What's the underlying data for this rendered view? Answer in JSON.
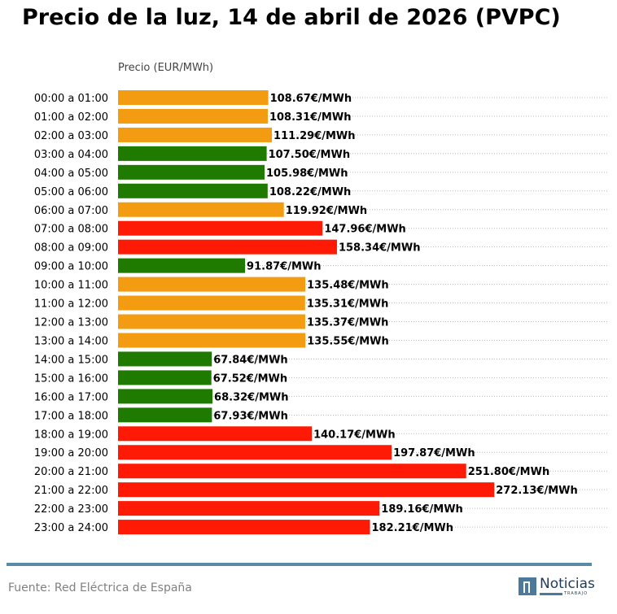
{
  "colors": {
    "low": "#1f7a00",
    "mid": "#f39c12",
    "high": "#ff1a05",
    "accent": "#5a8aa6"
  },
  "chart_data": {
    "type": "bar",
    "orientation": "horizontal",
    "title": "Precio de la luz, 14 de abril de 2026 (PVPC)",
    "ylabel": "Precio (EUR/MWh)",
    "xlim": [
      0,
      355
    ],
    "grid": "dotted horizontal",
    "categories": [
      "00:00 a 01:00",
      "01:00 a 02:00",
      "02:00 a 03:00",
      "03:00 a 04:00",
      "04:00 a 05:00",
      "05:00 a 06:00",
      "06:00 a 07:00",
      "07:00 a 08:00",
      "08:00 a 09:00",
      "09:00 a 10:00",
      "10:00 a 11:00",
      "11:00 a 12:00",
      "12:00 a 13:00",
      "13:00 a 14:00",
      "14:00 a 15:00",
      "15:00 a 16:00",
      "16:00 a 17:00",
      "17:00 a 18:00",
      "18:00 a 19:00",
      "19:00 a 20:00",
      "20:00 a 21:00",
      "21:00 a 22:00",
      "22:00 a 23:00",
      "23:00 a 24:00"
    ],
    "values": [
      108.67,
      108.31,
      111.29,
      107.5,
      105.98,
      108.22,
      119.92,
      147.96,
      158.34,
      91.87,
      135.48,
      135.31,
      135.37,
      135.55,
      67.84,
      67.52,
      68.32,
      67.93,
      140.17,
      197.87,
      251.8,
      272.13,
      189.16,
      182.21
    ],
    "labels": [
      "108.67€/MWh",
      "108.31€/MWh",
      "111.29€/MWh",
      "107.50€/MWh",
      "105.98€/MWh",
      "108.22€/MWh",
      "119.92€/MWh",
      "147.96€/MWh",
      "158.34€/MWh",
      "91.87€/MWh",
      "135.48€/MWh",
      "135.31€/MWh",
      "135.37€/MWh",
      "135.55€/MWh",
      "67.84€/MWh",
      "67.52€/MWh",
      "68.32€/MWh",
      "67.93€/MWh",
      "140.17€/MWh",
      "197.87€/MWh",
      "251.80€/MWh",
      "272.13€/MWh",
      "189.16€/MWh",
      "182.21€/MWh"
    ],
    "levels": [
      "mid",
      "mid",
      "mid",
      "low",
      "low",
      "low",
      "mid",
      "high",
      "high",
      "low",
      "mid",
      "mid",
      "mid",
      "mid",
      "low",
      "low",
      "low",
      "low",
      "high",
      "high",
      "high",
      "high",
      "high",
      "high"
    ]
  },
  "footer": {
    "source": "Fuente: Red Eléctrica de España"
  },
  "logo": {
    "text": "Noticias",
    "subtext": "TRABAJO"
  }
}
